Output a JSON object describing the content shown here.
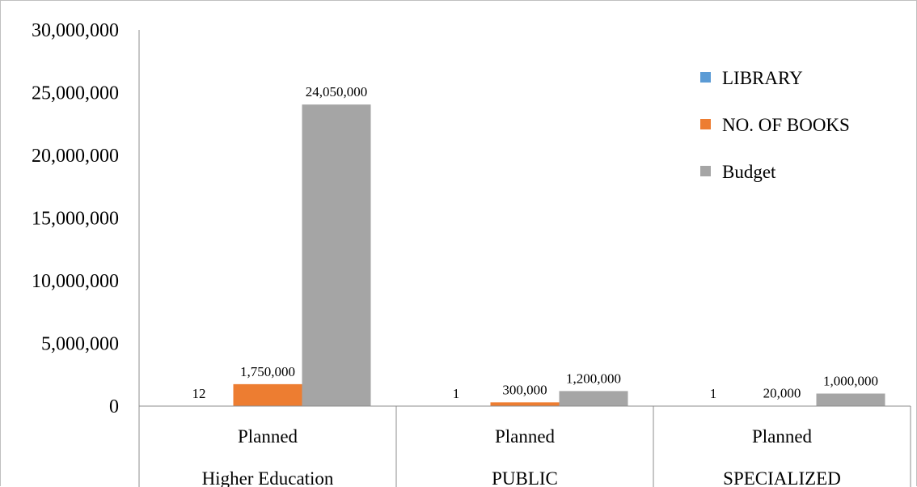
{
  "chart_data": {
    "type": "bar",
    "categories": [
      {
        "level1": "Planned",
        "level2": "Higher Education"
      },
      {
        "level1": "Planned",
        "level2": "PUBLIC"
      },
      {
        "level1": "Planned",
        "level2": "SPECIALIZED"
      }
    ],
    "series": [
      {
        "name": "LIBRARY",
        "color": "#5B9BD5",
        "values": [
          12,
          1,
          1
        ],
        "labels": [
          "12",
          "1",
          "1"
        ]
      },
      {
        "name": "NO. OF BOOKS",
        "color": "#ED7D31",
        "values": [
          1750000,
          300000,
          20000
        ],
        "labels": [
          "1,750,000",
          "300,000",
          "20,000"
        ]
      },
      {
        "name": "Budget",
        "color": "#A5A5A5",
        "values": [
          24050000,
          1200000,
          1000000
        ],
        "labels": [
          "24,050,000",
          "1,200,000",
          "1,000,000"
        ]
      }
    ],
    "y_ticks": [
      "0",
      "5,000,000",
      "10,000,000",
      "15,000,000",
      "20,000,000",
      "25,000,000",
      "30,000,000"
    ],
    "ylim": [
      0,
      30000000
    ],
    "grid": false,
    "legend_position": "top-right"
  }
}
